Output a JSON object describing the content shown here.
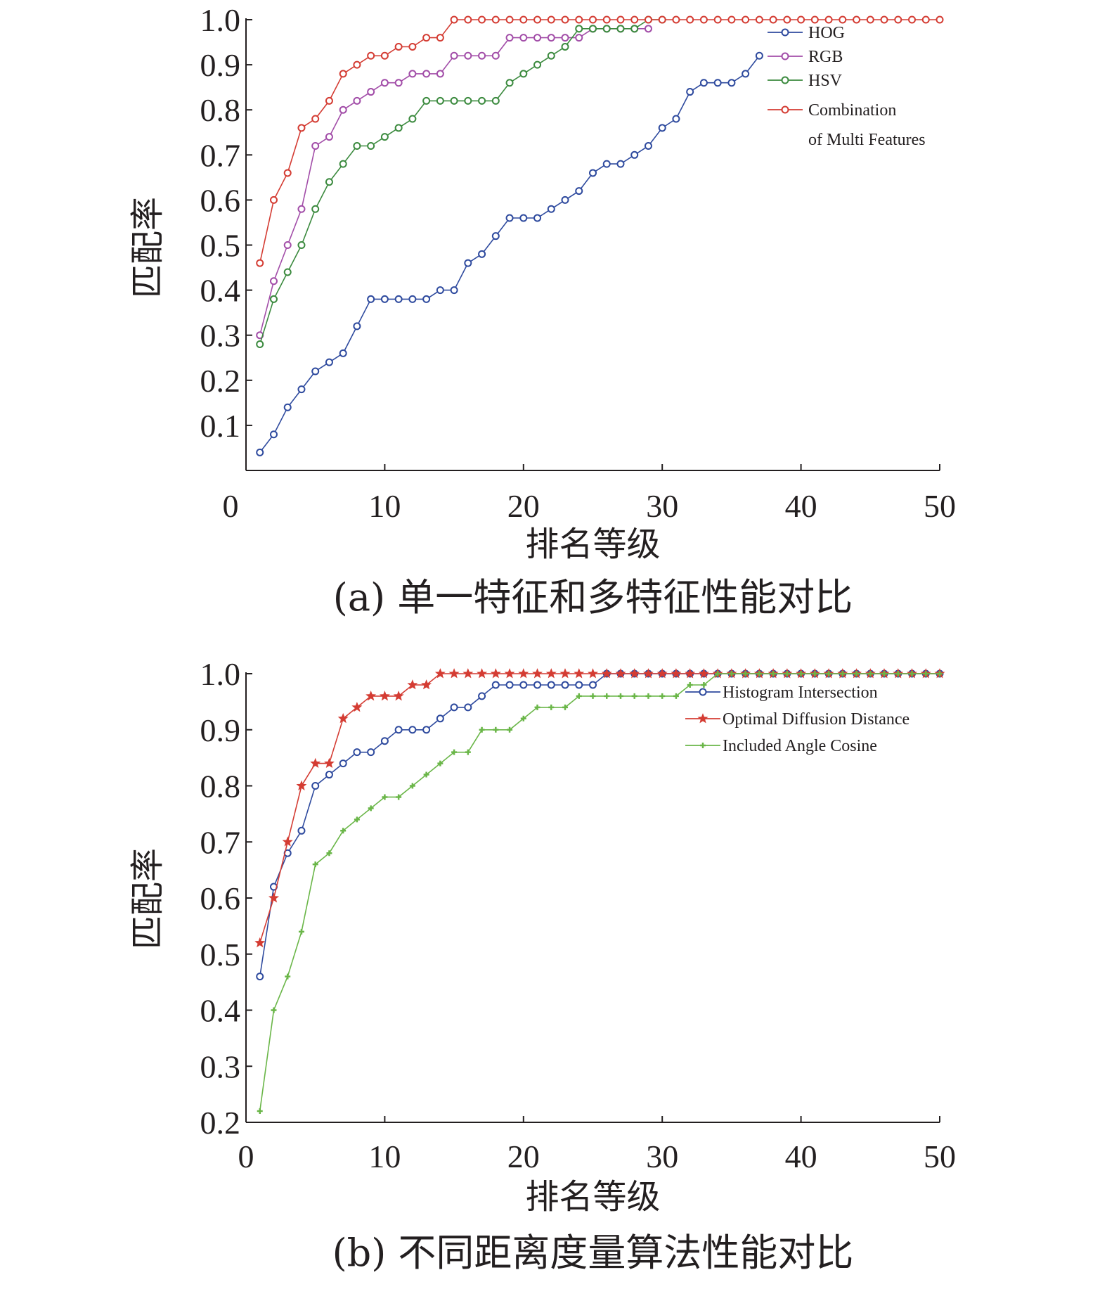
{
  "chart_data": [
    {
      "type": "line",
      "caption": "(a) 单一特征和多特征性能对比",
      "xlabel": "排名等级",
      "ylabel": "匹配率",
      "xlim": [
        0,
        50
      ],
      "ylim": [
        0,
        1.0
      ],
      "xticks": [
        "0",
        "10",
        "20",
        "30",
        "40",
        "50"
      ],
      "yticks": [
        "0.1",
        "0.2",
        "0.3",
        "0.4",
        "0.5",
        "0.6",
        "0.7",
        "0.8",
        "0.9",
        "1.0"
      ],
      "legend_position": "top-right",
      "series": [
        {
          "name": "HOG",
          "color": "#2e4a9e",
          "marker": "circle",
          "x": [
            1,
            2,
            3,
            4,
            5,
            6,
            7,
            8,
            9,
            10,
            11,
            12,
            13,
            14,
            15,
            16,
            17,
            18,
            19,
            20,
            21,
            22,
            23,
            24,
            25,
            26,
            27,
            28,
            29,
            30,
            31,
            32,
            33,
            34,
            35,
            36,
            37
          ],
          "y": [
            0.04,
            0.08,
            0.14,
            0.18,
            0.22,
            0.24,
            0.26,
            0.32,
            0.38,
            0.38,
            0.38,
            0.38,
            0.38,
            0.4,
            0.4,
            0.46,
            0.48,
            0.52,
            0.56,
            0.56,
            0.56,
            0.58,
            0.6,
            0.62,
            0.66,
            0.68,
            0.68,
            0.7,
            0.72,
            0.76,
            0.78,
            0.84,
            0.86,
            0.86,
            0.86,
            0.88,
            0.92
          ]
        },
        {
          "name": "RGB",
          "color": "#a24da8",
          "marker": "circle",
          "x": [
            1,
            2,
            3,
            4,
            5,
            6,
            7,
            8,
            9,
            10,
            11,
            12,
            13,
            14,
            15,
            16,
            17,
            18,
            19,
            20,
            21,
            22,
            23,
            24,
            25,
            26,
            27,
            28,
            29
          ],
          "y": [
            0.3,
            0.42,
            0.5,
            0.58,
            0.72,
            0.74,
            0.8,
            0.82,
            0.84,
            0.86,
            0.86,
            0.88,
            0.88,
            0.88,
            0.92,
            0.92,
            0.92,
            0.92,
            0.96,
            0.96,
            0.96,
            0.96,
            0.96,
            0.96,
            0.98,
            0.98,
            0.98,
            0.98,
            0.98
          ]
        },
        {
          "name": "HSV",
          "color": "#3b8a3e",
          "marker": "circle",
          "x": [
            1,
            2,
            3,
            4,
            5,
            6,
            7,
            8,
            9,
            10,
            11,
            12,
            13,
            14,
            15,
            16,
            17,
            18,
            19,
            20,
            21,
            22,
            23,
            24,
            25,
            26,
            27,
            28,
            29,
            30
          ],
          "y": [
            0.28,
            0.38,
            0.44,
            0.5,
            0.58,
            0.64,
            0.68,
            0.72,
            0.72,
            0.74,
            0.76,
            0.78,
            0.82,
            0.82,
            0.82,
            0.82,
            0.82,
            0.82,
            0.86,
            0.88,
            0.9,
            0.92,
            0.94,
            0.98,
            0.98,
            0.98,
            0.98,
            0.98,
            1.0,
            1.0
          ]
        },
        {
          "name": "Combination of Multi Features",
          "legend_lines": [
            "Combination",
            "of Multi Features"
          ],
          "color": "#d43c33",
          "marker": "circle",
          "x": [
            1,
            2,
            3,
            4,
            5,
            6,
            7,
            8,
            9,
            10,
            11,
            12,
            13,
            14,
            15,
            16,
            17,
            18,
            19,
            20,
            21,
            22,
            23,
            24,
            25,
            26,
            27,
            28,
            29,
            30,
            31,
            32,
            33,
            34,
            35,
            36,
            37,
            38,
            39,
            40,
            41,
            42,
            43,
            44,
            45,
            46,
            47,
            48,
            49,
            50
          ],
          "y": [
            0.46,
            0.6,
            0.66,
            0.76,
            0.78,
            0.82,
            0.88,
            0.9,
            0.92,
            0.92,
            0.94,
            0.94,
            0.96,
            0.96,
            1.0,
            1.0,
            1.0,
            1.0,
            1.0,
            1.0,
            1.0,
            1.0,
            1.0,
            1.0,
            1.0,
            1.0,
            1.0,
            1.0,
            1.0,
            1.0,
            1.0,
            1.0,
            1.0,
            1.0,
            1.0,
            1.0,
            1.0,
            1.0,
            1.0,
            1.0,
            1.0,
            1.0,
            1.0,
            1.0,
            1.0,
            1.0,
            1.0,
            1.0,
            1.0,
            1.0
          ]
        }
      ]
    },
    {
      "type": "line",
      "caption": "(b) 不同距离度量算法性能对比",
      "xlabel": "排名等级",
      "ylabel": "匹配率",
      "xlim": [
        0,
        50
      ],
      "ylim": [
        0.2,
        1.0
      ],
      "xticks": [
        "0",
        "10",
        "20",
        "30",
        "40",
        "50"
      ],
      "yticks": [
        "0.2",
        "0.3",
        "0.4",
        "0.5",
        "0.6",
        "0.7",
        "0.8",
        "0.9",
        "1.0"
      ],
      "legend_position": "top-right",
      "series": [
        {
          "name": "Histogram Intersection",
          "color": "#2e4a9e",
          "marker": "circle",
          "x": [
            1,
            2,
            3,
            4,
            5,
            6,
            7,
            8,
            9,
            10,
            11,
            12,
            13,
            14,
            15,
            16,
            17,
            18,
            19,
            20,
            21,
            22,
            23,
            24,
            25,
            26,
            27,
            28,
            29,
            30,
            31,
            32,
            33,
            34,
            35,
            36,
            37,
            38,
            39,
            40,
            41,
            42,
            43,
            44,
            45,
            46,
            47,
            48,
            49,
            50
          ],
          "y": [
            0.46,
            0.62,
            0.68,
            0.72,
            0.8,
            0.82,
            0.84,
            0.86,
            0.86,
            0.88,
            0.9,
            0.9,
            0.9,
            0.92,
            0.94,
            0.94,
            0.96,
            0.98,
            0.98,
            0.98,
            0.98,
            0.98,
            0.98,
            0.98,
            0.98,
            1.0,
            1.0,
            1.0,
            1.0,
            1.0,
            1.0,
            1.0,
            1.0,
            1.0,
            1.0,
            1.0,
            1.0,
            1.0,
            1.0,
            1.0,
            1.0,
            1.0,
            1.0,
            1.0,
            1.0,
            1.0,
            1.0,
            1.0,
            1.0,
            1.0
          ]
        },
        {
          "name": "Optimal Diffusion Distance",
          "color": "#d43c33",
          "marker": "star",
          "x": [
            1,
            2,
            3,
            4,
            5,
            6,
            7,
            8,
            9,
            10,
            11,
            12,
            13,
            14,
            15,
            16,
            17,
            18,
            19,
            20,
            21,
            22,
            23,
            24,
            25,
            26,
            27,
            28,
            29,
            30,
            31,
            32,
            33,
            34,
            35,
            36,
            37,
            38,
            39,
            40,
            41,
            42,
            43,
            44,
            45,
            46,
            47,
            48,
            49,
            50
          ],
          "y": [
            0.52,
            0.6,
            0.7,
            0.8,
            0.84,
            0.84,
            0.92,
            0.94,
            0.96,
            0.96,
            0.96,
            0.98,
            0.98,
            1.0,
            1.0,
            1.0,
            1.0,
            1.0,
            1.0,
            1.0,
            1.0,
            1.0,
            1.0,
            1.0,
            1.0,
            1.0,
            1.0,
            1.0,
            1.0,
            1.0,
            1.0,
            1.0,
            1.0,
            1.0,
            1.0,
            1.0,
            1.0,
            1.0,
            1.0,
            1.0,
            1.0,
            1.0,
            1.0,
            1.0,
            1.0,
            1.0,
            1.0,
            1.0,
            1.0,
            1.0
          ]
        },
        {
          "name": "Included Angle Cosine",
          "color": "#6ab648",
          "marker": "plus",
          "x": [
            1,
            2,
            3,
            4,
            5,
            6,
            7,
            8,
            9,
            10,
            11,
            12,
            13,
            14,
            15,
            16,
            17,
            18,
            19,
            20,
            21,
            22,
            23,
            24,
            25,
            26,
            27,
            28,
            29,
            30,
            31,
            32,
            33,
            34,
            35,
            36,
            37,
            38,
            39,
            40,
            41,
            42,
            43,
            44,
            45,
            46,
            47,
            48,
            49,
            50
          ],
          "y": [
            0.22,
            0.4,
            0.46,
            0.54,
            0.66,
            0.68,
            0.72,
            0.74,
            0.76,
            0.78,
            0.78,
            0.8,
            0.82,
            0.84,
            0.86,
            0.86,
            0.9,
            0.9,
            0.9,
            0.92,
            0.94,
            0.94,
            0.94,
            0.96,
            0.96,
            0.96,
            0.96,
            0.96,
            0.96,
            0.96,
            0.96,
            0.98,
            0.98,
            1.0,
            1.0,
            1.0,
            1.0,
            1.0,
            1.0,
            1.0,
            1.0,
            1.0,
            1.0,
            1.0,
            1.0,
            1.0,
            1.0,
            1.0,
            1.0,
            1.0
          ]
        }
      ]
    }
  ]
}
